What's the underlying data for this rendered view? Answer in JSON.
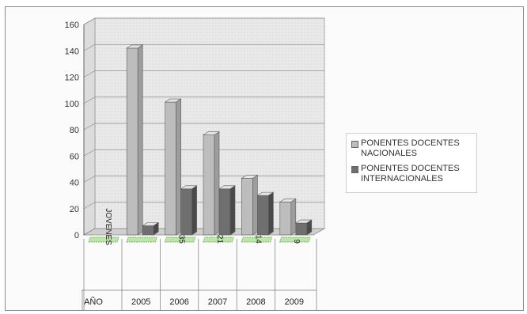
{
  "chart_data": {
    "type": "bar",
    "categories": [
      "JOVENES",
      "2005",
      "2006",
      "2007",
      "2008",
      "2009"
    ],
    "series": [
      {
        "name": "PONENTES DOCENTES NACIONALES",
        "values": [
          0,
          142,
          101,
          76,
          43,
          25
        ],
        "color": "#bdbdbd"
      },
      {
        "name": "PONENTES DOCENTES INTERNACIONALES",
        "values": [
          0,
          7,
          35,
          35,
          30,
          9
        ],
        "color": "#6f6f6f"
      }
    ],
    "ylim": [
      0,
      160
    ],
    "yticks": [
      0,
      20,
      40,
      60,
      80,
      100,
      120,
      140,
      160
    ],
    "table": {
      "header_label": "AÑO",
      "first_row_labels": [
        "JOVENES",
        "",
        "35",
        "21",
        "14",
        "9"
      ],
      "year_labels": [
        "",
        "2005",
        "2006",
        "2007",
        "2008",
        "2009"
      ]
    },
    "grid": true,
    "legend_position": "right"
  }
}
